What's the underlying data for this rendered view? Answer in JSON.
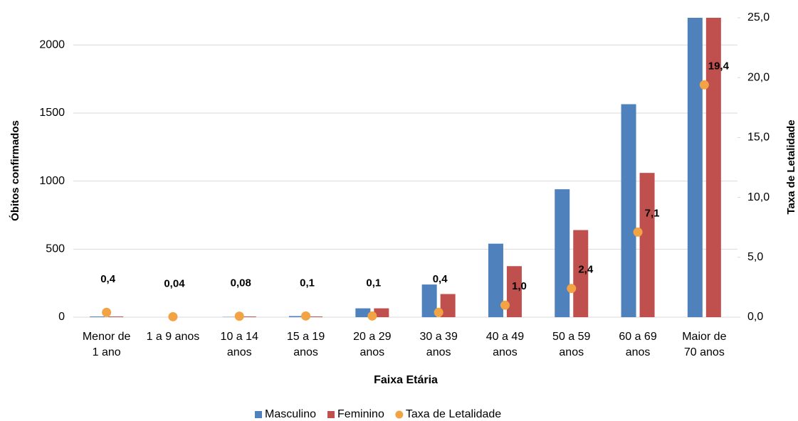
{
  "chart_data": {
    "type": "bar",
    "x_label": "Faixa Etária",
    "y_label": "Óbitos confirmados",
    "y2_label": "Taxa de Letalidade",
    "categories": [
      [
        "Menor de",
        "1 ano"
      ],
      [
        "1 a 9 anos"
      ],
      [
        "10 a 14",
        "anos"
      ],
      [
        "15 a 19",
        "anos"
      ],
      [
        "20 a 29",
        "anos"
      ],
      [
        "30 a 39",
        "anos"
      ],
      [
        "40 a 49",
        "anos"
      ],
      [
        "50 a 59",
        "anos"
      ],
      [
        "60 a 69",
        "anos"
      ],
      [
        "Maior de",
        "70 anos"
      ]
    ],
    "series": [
      {
        "name": "Masculino",
        "color": "#4f81bd",
        "values": [
          5,
          0,
          2,
          8,
          65,
          240,
          540,
          940,
          1565,
          2200
        ]
      },
      {
        "name": "Feminino",
        "color": "#c0504d",
        "values": [
          5,
          0,
          5,
          5,
          65,
          170,
          375,
          640,
          1060,
          2200
        ]
      },
      {
        "name": "Taxa de Letalidade",
        "color": "#f2a344",
        "axis": "y2",
        "values": [
          0.4,
          0.04,
          0.08,
          0.1,
          0.1,
          0.4,
          1.0,
          2.4,
          7.1,
          19.4
        ],
        "value_labels": [
          "0,4",
          "0,04",
          "0,08",
          "0,1",
          "0,1",
          "0,4",
          "1,0",
          "2,4",
          "7,1",
          "19,4"
        ]
      }
    ],
    "ylim": [
      0,
      2200
    ],
    "yticks": [
      0,
      500,
      1000,
      1500,
      2000
    ],
    "y2lim": [
      0,
      25
    ],
    "y2ticks": [
      {
        "value": 0,
        "label": "0,0"
      },
      {
        "value": 5,
        "label": "5,0"
      },
      {
        "value": 10,
        "label": "10,0"
      },
      {
        "value": 15,
        "label": "15,0"
      },
      {
        "value": 20,
        "label": "20,0"
      },
      {
        "value": 25,
        "label": "25,0"
      }
    ],
    "grid": true,
    "legend": "bottom"
  }
}
